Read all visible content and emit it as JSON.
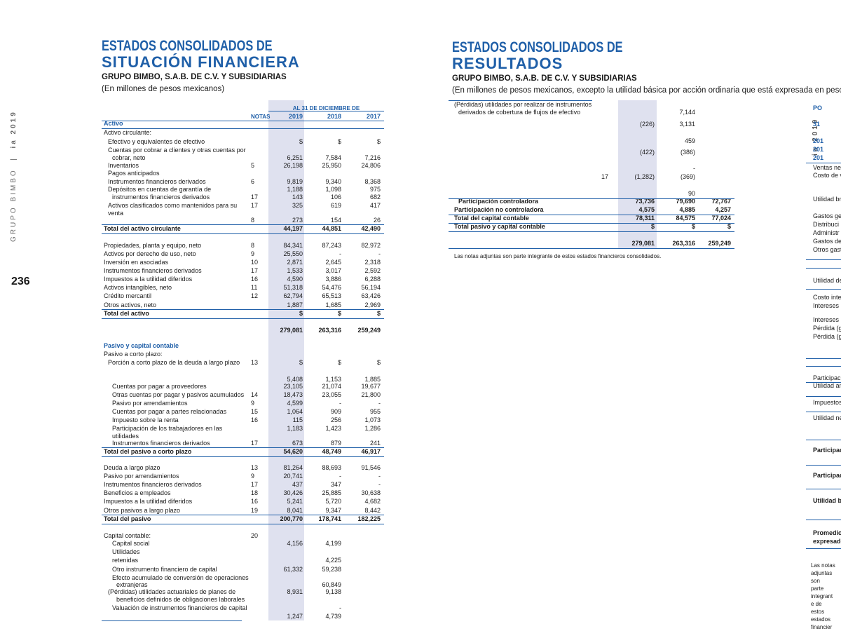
{
  "sidebar": {
    "company": "GRUPO BIMBO",
    "separator": "|",
    "report": "ia 2019"
  },
  "page_number": "236",
  "left": {
    "title_line1": "ESTADOS CONSOLIDADOS DE",
    "title_line2": "SITUACIÓN FINANCIERA",
    "company": "GRUPO BIMBO, S.A.B. DE C.V. Y SUBSIDIARIAS",
    "units": "(En millones de pesos mexicanos)",
    "header": {
      "period": "AL 31 DE DICIEMBRE DE",
      "notes": "NOTAS",
      "years": [
        "2019",
        "2018",
        "2017"
      ]
    },
    "rows": [
      {
        "label": "Activo"
      },
      {
        "label": "Activo circulante:"
      },
      {
        "label": "Efectivo y equivalentes de efectivo",
        "values": [
          "$",
          "$",
          "$"
        ]
      },
      {
        "label": "Cuentas por cobrar a clientes y otras cuentas por"
      },
      {
        "label": "cobrar, neto",
        "values": [
          "6,251",
          "7,584",
          "7,216"
        ]
      },
      {
        "label": "Inventarios",
        "note": "5",
        "values": [
          "26,198",
          "25,950",
          "24,806"
        ]
      },
      {
        "label": "Pagos anticipados"
      },
      {
        "label": "Instrumentos financieros derivados",
        "note": "6",
        "values": [
          "9,819",
          "9,340",
          "8,368"
        ]
      },
      {
        "label": "Depósitos en cuentas de garantía de",
        "values": [
          "1,188",
          "1,098",
          "975"
        ]
      },
      {
        "label": "instrumentos financieros derivados",
        "note": "17",
        "values": [
          "143",
          "106",
          "682"
        ]
      },
      {
        "label": "Activos clasificados como mantenidos para su",
        "note": "17",
        "values": [
          "325",
          "619",
          "417"
        ]
      },
      {
        "label": "venta"
      },
      {
        "note": "8",
        "values": [
          "273",
          "154",
          "26"
        ]
      },
      {
        "label": "Total del activo circulante",
        "values": [
          "44,197",
          "44,851",
          "42,490"
        ]
      },
      {
        "label": "Propiedades, planta y equipo, neto",
        "note": "8",
        "values": [
          "84,341",
          "87,243",
          "82,972"
        ]
      },
      {
        "label": "Activos por derecho de uso, neto",
        "note": "9",
        "values": [
          "25,550",
          "-",
          "-"
        ]
      },
      {
        "label": "Inversión en asociadas",
        "note": "10",
        "values": [
          "2,871",
          "2,645",
          "2,318"
        ]
      },
      {
        "label": "Instrumentos financieros derivados",
        "note": "17",
        "values": [
          "1,533",
          "3,017",
          "2,592"
        ]
      },
      {
        "label": "Impuestos a la utilidad diferidos",
        "note": "16",
        "values": [
          "4,590",
          "3,886",
          "6,288"
        ]
      },
      {
        "label": "Activos intangibles, neto",
        "note": "11",
        "values": [
          "51,318",
          "54,476",
          "56,194"
        ]
      },
      {
        "label": "Crédito mercantil",
        "note": "12",
        "values": [
          "62,794",
          "65,513",
          "63,426"
        ]
      },
      {
        "label": "Otros activos, neto",
        "values": [
          "1,887",
          "1,685",
          "2,969"
        ]
      },
      {
        "label": "Total del activo",
        "values": [
          "$",
          "$",
          "$"
        ]
      },
      {
        "values": [
          "279,081",
          "263,316",
          "259,249"
        ]
      },
      {
        "label": "Pasivo y capital contable"
      },
      {
        "label": "Pasivo a corto plazo:"
      },
      {
        "label": "Porción a corto plazo de la deuda a largo plazo",
        "note": "13",
        "values": [
          "$",
          "$",
          "$"
        ]
      },
      {
        "values": [
          "5,408",
          "1,153",
          "1,885"
        ]
      },
      {
        "label": "Cuentas por pagar a proveedores",
        "values": [
          "23,105",
          "21,074",
          "19,677"
        ]
      },
      {
        "label": "Otras cuentas por pagar y pasivos acumulados",
        "note": "14",
        "values": [
          "18,473",
          "23,055",
          "21,800"
        ]
      },
      {
        "label": "Pasivo por arrendamientos",
        "note": "9",
        "values": [
          "4,599",
          "-",
          "-"
        ]
      },
      {
        "label": "Cuentas por pagar a partes relacionadas",
        "note": "15",
        "values": [
          "1,064",
          "909",
          "955"
        ]
      },
      {
        "label": "Impuesto sobre la renta",
        "note": "16",
        "values": [
          "115",
          "256",
          "1,073"
        ]
      },
      {
        "label": "Participación de los trabajadores en las",
        "values": [
          "1,183",
          "1,423",
          "1,286"
        ]
      },
      {
        "label": "utilidades"
      },
      {
        "label": "Instrumentos financieros derivados",
        "note": "17",
        "values": [
          "673",
          "879",
          "241"
        ]
      },
      {
        "label": "Total del pasivo a corto plazo",
        "values": [
          "54,620",
          "48,749",
          "46,917"
        ]
      },
      {
        "label": "Deuda a largo plazo",
        "note": "13",
        "values": [
          "81,264",
          "88,693",
          "91,546"
        ]
      },
      {
        "label": "Pasivo por arrendamientos",
        "note": "9",
        "values": [
          "20,741",
          "-",
          "-"
        ]
      },
      {
        "label": "Instrumentos financieros derivados",
        "note": "17",
        "values": [
          "437",
          "347",
          "-"
        ]
      },
      {
        "label": "Beneficios a empleados",
        "note": "18",
        "values": [
          "30,426",
          "25,885",
          "30,638"
        ]
      },
      {
        "label": "Impuestos a la utilidad diferidos",
        "note": "16",
        "values": [
          "5,241",
          "5,720",
          "4,682"
        ]
      },
      {
        "label": "Otros pasivos a largo plazo",
        "note": "19",
        "values": [
          "8,041",
          "9,347",
          "8,442"
        ]
      },
      {
        "label": "Total del pasivo",
        "values": [
          "200,770",
          "178,741",
          "182,225"
        ]
      },
      {
        "label": "Capital contable:",
        "note": "20"
      },
      {
        "label": "Capital social",
        "values": [
          "4,156",
          "4,199",
          null
        ]
      },
      {
        "label": "Utilidades"
      },
      {
        "label": "retenidas",
        "values": [
          null,
          "4,225",
          null
        ]
      },
      {
        "label": "Otro instrumento financiero de capital",
        "values": [
          "61,332",
          "59,238",
          null
        ]
      },
      {
        "label": "Efecto acumulado de conversión de operaciones"
      },
      {
        "label": "extranjeras",
        "values": [
          null,
          "60,849",
          null
        ]
      },
      {
        "label": "(Pérdidas) utilidades actuariales de planes de",
        "values": [
          "8,931",
          "9,138",
          null
        ]
      },
      {
        "label": "beneficios definidos de obligaciones laborales"
      },
      {
        "label": "Valuación de instrumentos financieros de capital",
        "values": [
          null,
          "-",
          null
        ]
      },
      {
        "values": [
          "1,247",
          "4,739",
          null
        ]
      }
    ]
  },
  "right": {
    "title_line1": "ESTADOS CONSOLIDADOS DE",
    "title_line2": "RESULTADOS",
    "company": "GRUPO BIMBO, S.A.B. DE C.V. Y SUBSIDIARIAS",
    "units": "(En millones de pesos mexicanos, excepto la utilidad básica por acción ordinaria que está expresada en pesos mexicanos)",
    "rows": [
      {
        "label": "(Pérdidas) utilidades por realizar de instrumentos"
      },
      {
        "label": "derivados de cobertura de flujos de efectivo",
        "values": [
          null,
          "7,144",
          null
        ]
      },
      {
        "values": [
          "(226)",
          "3,131",
          null
        ]
      },
      {
        "values": [
          null,
          "459",
          null
        ]
      },
      {
        "values": [
          "(422)",
          "(386)",
          null
        ]
      },
      {
        "values": [
          null,
          "-",
          null
        ]
      },
      {
        "note": "17",
        "values": [
          "(1,282)",
          "(369)",
          null
        ]
      },
      {
        "values": [
          null,
          "90",
          null
        ]
      },
      {
        "label": "Participación controladora",
        "values": [
          "73,736",
          "79,690",
          "72,767"
        ]
      },
      {
        "label": "Participación no controladora",
        "values": [
          "4,575",
          "4,885",
          "4,257"
        ]
      },
      {
        "label": "Total del capital contable",
        "values": [
          "78,311",
          "84,575",
          "77,024"
        ]
      },
      {
        "label": "Total pasivo y capital contable",
        "values": [
          "$",
          "$",
          "$"
        ]
      },
      {
        "values": [
          "279,081",
          "263,316",
          "259,249"
        ]
      }
    ],
    "footnote": "Las notas adjuntas son parte integrante de estos estados financieros consolidados."
  },
  "right_edge": {
    "sidebar": "ia 2019",
    "fragments": [
      "PO",
      "31",
      "201",
      "201",
      "201",
      "Ventas net",
      "Costo de v",
      "Utilidad br",
      "Gastos gen",
      "Distribuci",
      "Administr",
      "Gastos de",
      "Otros gast",
      "Utilidad de",
      "Costo integ",
      "Intereses",
      "Intereses",
      "Pérdida (g",
      "Pérdida (g",
      "Participaci",
      "Utilidad an",
      "Impuestos",
      "Utilidad ne",
      "Participaci",
      "Participaci",
      "Utilidad b",
      "Promedio",
      "expresado",
      "Las notas",
      "adjuntas",
      "son",
      "parte",
      "integrant",
      "e de",
      "estos",
      "estados",
      "financier"
    ]
  }
}
